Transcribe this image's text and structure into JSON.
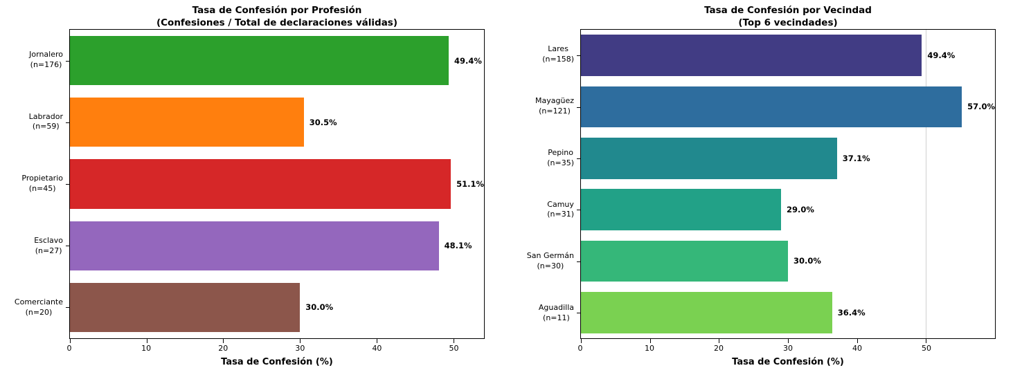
{
  "figure": {
    "background": "#ffffff",
    "spine_color": "#000000",
    "grid_color": "#cfcfcf"
  },
  "chart_data": [
    {
      "type": "bar",
      "orientation": "horizontal",
      "title": "Tasa de Confesión por Profesión",
      "subtitle": "(Confesiones / Total de declaraciones válidas)",
      "xlabel": "Tasa de Confesión (%)",
      "xlim": [
        0,
        54
      ],
      "xticks": [
        0,
        10,
        20,
        30,
        40,
        50
      ],
      "gridlines_x": [],
      "legend": false,
      "items": [
        {
          "category": "Jornalero",
          "count_label": "(n=176)",
          "value": 49.4,
          "value_label": "49.4%",
          "color": "#2ca02c"
        },
        {
          "category": "Labrador",
          "count_label": "(n=59)",
          "value": 30.5,
          "value_label": "30.5%",
          "color": "#ff7f0e"
        },
        {
          "category": "Propietario",
          "count_label": "(n=45)",
          "value": 51.1,
          "value_label": "51.1%",
          "color": "#d62728"
        },
        {
          "category": "Esclavo",
          "count_label": "(n=27)",
          "value": 48.1,
          "value_label": "48.1%",
          "color": "#9467bd"
        },
        {
          "category": "Comerciante",
          "count_label": "(n=20)",
          "value": 30.0,
          "value_label": "30.0%",
          "color": "#8c564b"
        }
      ]
    },
    {
      "type": "bar",
      "orientation": "horizontal",
      "title": "Tasa de Confesión por Vecindad",
      "subtitle": "(Top 6 vecindades)",
      "xlabel": "Tasa de Confesión (%)",
      "xlim": [
        0,
        60
      ],
      "xticks": [
        0,
        10,
        20,
        30,
        40,
        50
      ],
      "gridlines_x": [
        50
      ],
      "legend": false,
      "items": [
        {
          "category": "Lares",
          "count_label": "(n=158)",
          "value": 49.4,
          "value_label": "49.4%",
          "color": "#413c84"
        },
        {
          "category": "Mayagüez",
          "count_label": "(n=121)",
          "value": 57.0,
          "value_label": "57.0%",
          "color": "#2e6d9e"
        },
        {
          "category": "Pepino",
          "count_label": "(n=35)",
          "value": 37.1,
          "value_label": "37.1%",
          "color": "#21898e"
        },
        {
          "category": "Camuy",
          "count_label": "(n=31)",
          "value": 29.0,
          "value_label": "29.0%",
          "color": "#22a187"
        },
        {
          "category": "San Germán",
          "count_label": "(n=30)",
          "value": 30.0,
          "value_label": "30.0%",
          "color": "#35b779"
        },
        {
          "category": "Aguadilla",
          "count_label": "(n=11)",
          "value": 36.4,
          "value_label": "36.4%",
          "color": "#7ad151"
        }
      ]
    }
  ]
}
